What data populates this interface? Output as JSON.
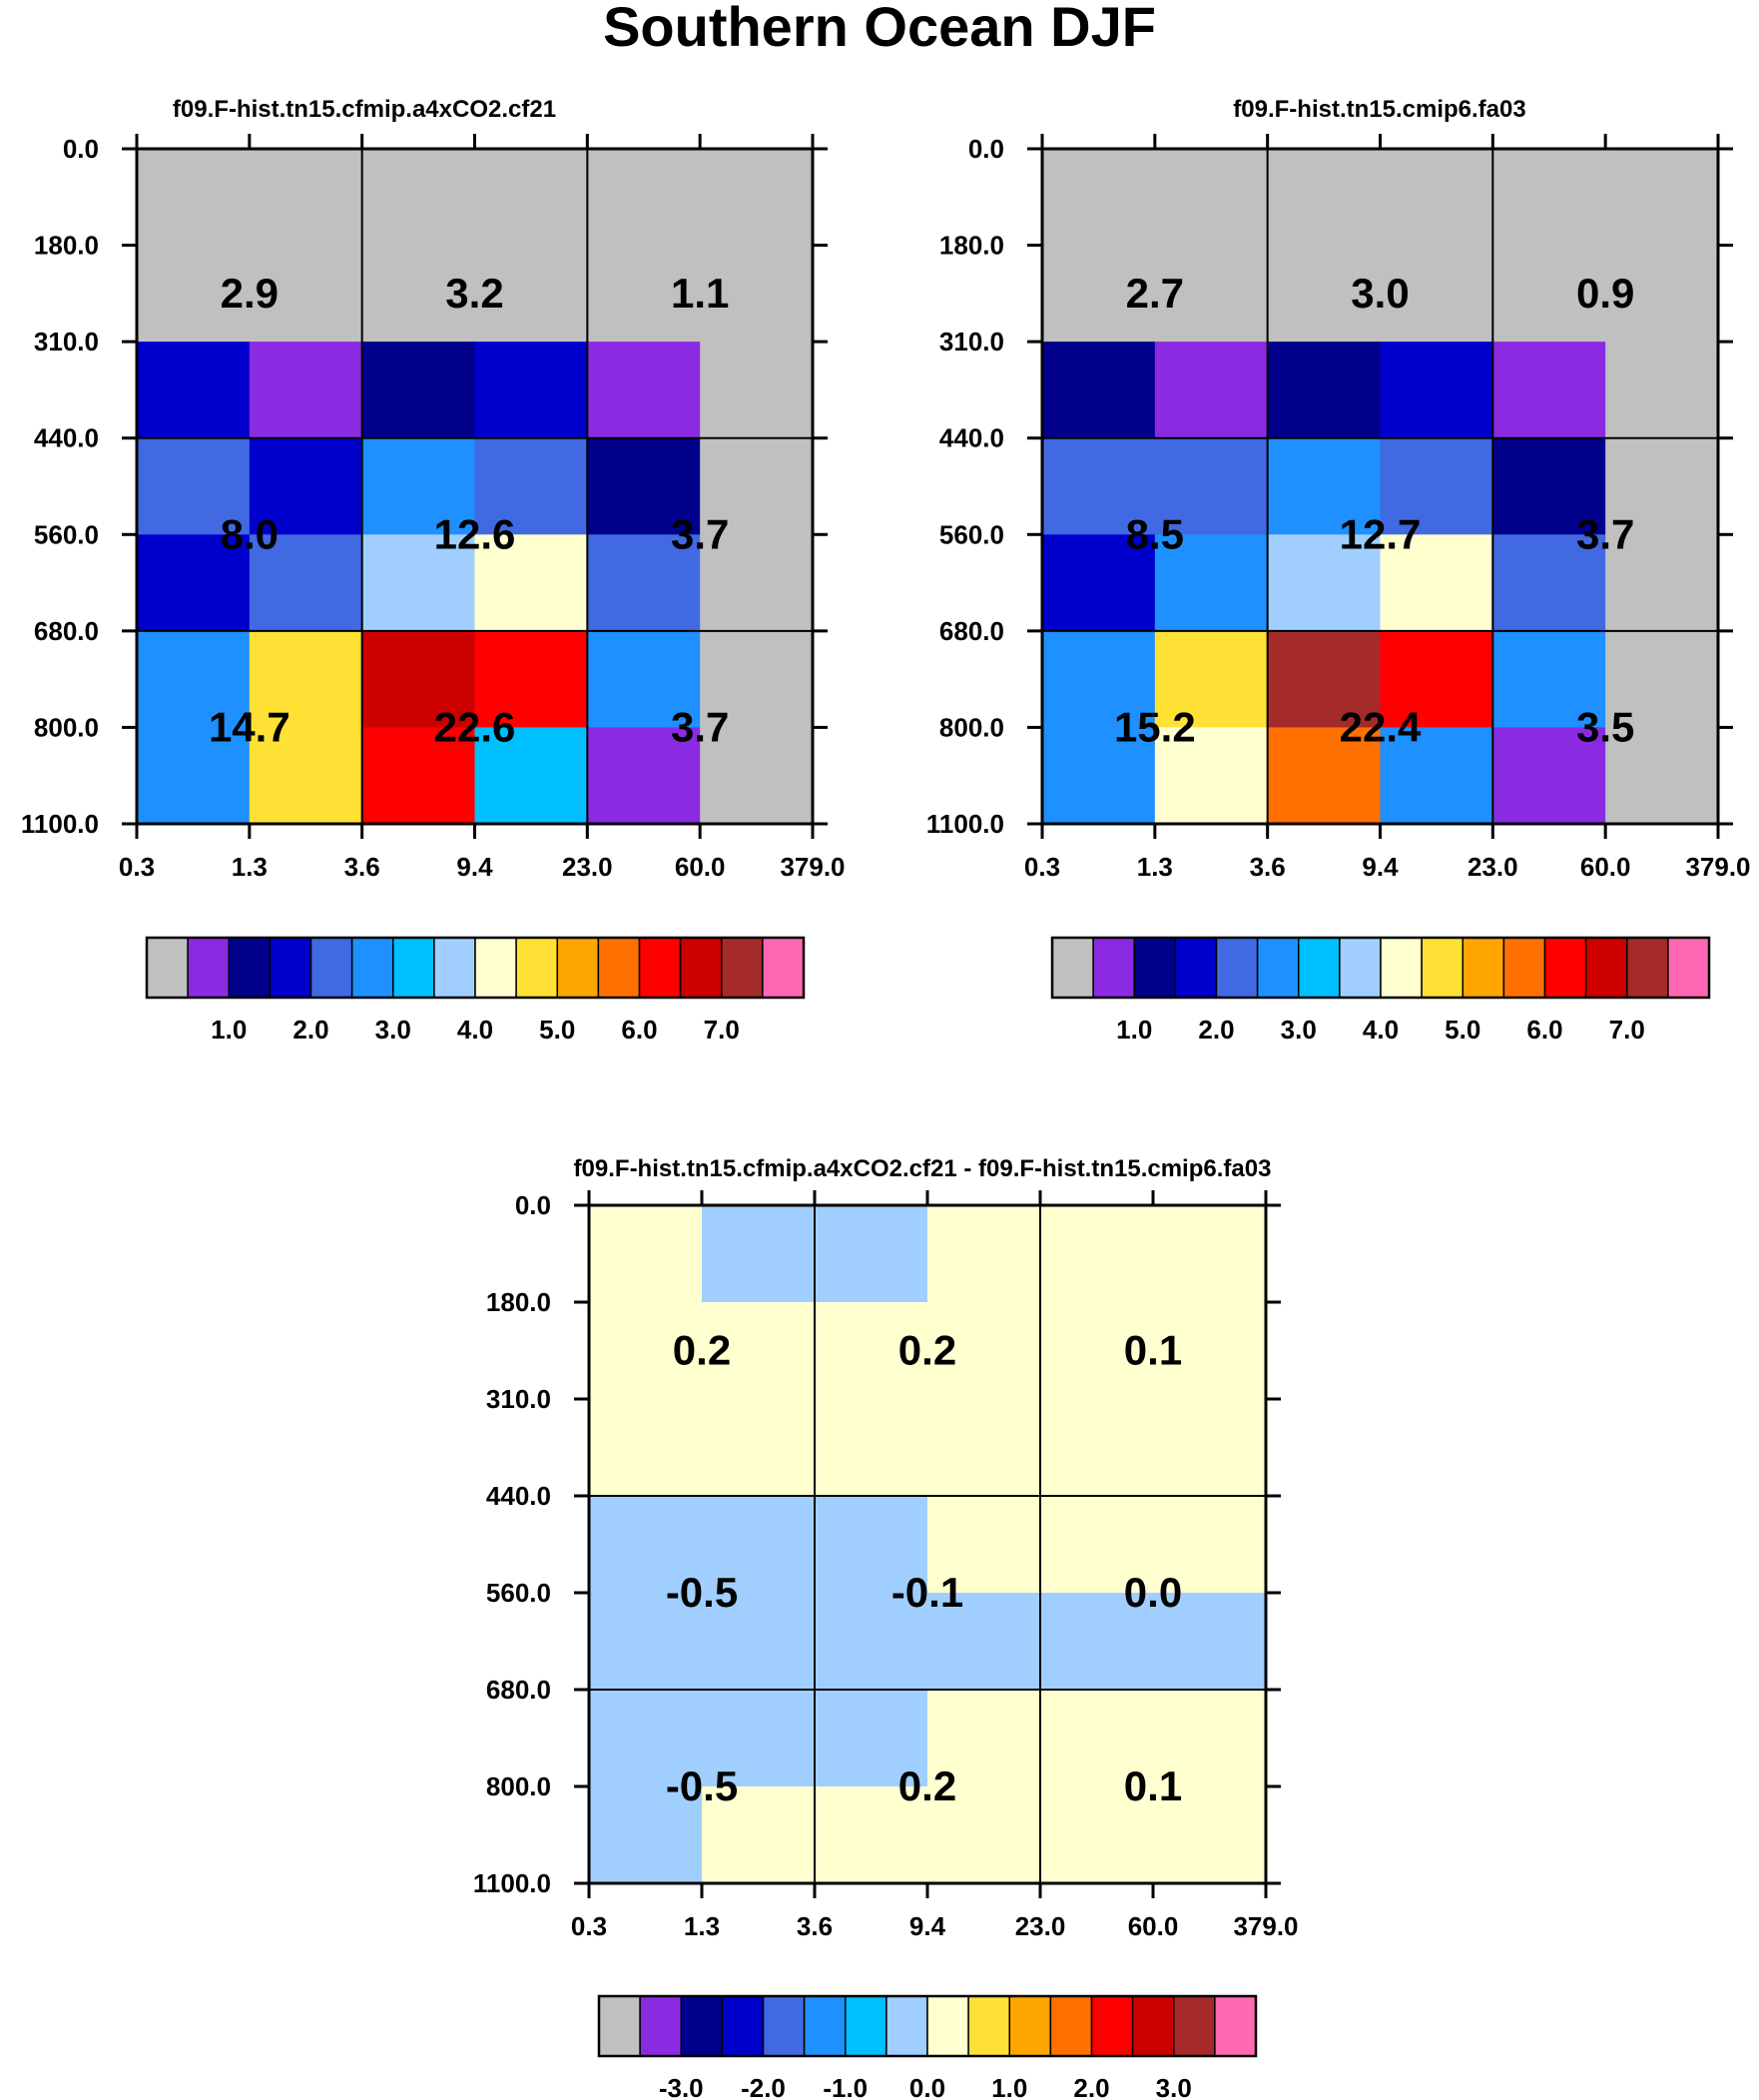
{
  "title": "Southern Ocean DJF",
  "colors": {
    "scale": [
      "#c0c0c0",
      "#8a2be2",
      "#00008b",
      "#0000cd",
      "#4169e1",
      "#1e90ff",
      "#00bfff",
      "#a0cfff",
      "#ffffd0",
      "#ffe135",
      "#ffa500",
      "#ff7000",
      "#ff0000",
      "#cd0000",
      "#a52a2a",
      "#ff69b4"
    ]
  },
  "chart_data": [
    {
      "type": "heatmap",
      "title": "f09.F-hist.tn15.cfmip.a4xCO2.cf21",
      "x_ticks": [
        "0.3",
        "1.3",
        "3.6",
        "9.4",
        "23.0",
        "60.0",
        "379.0"
      ],
      "y_ticks": [
        "0.0",
        "180.0",
        "310.0",
        "440.0",
        "560.0",
        "680.0",
        "800.0",
        "1100.0"
      ],
      "cells": [
        [
          0,
          0,
          0,
          0,
          0,
          0
        ],
        [
          0,
          0,
          0,
          0,
          0,
          0
        ],
        [
          3,
          1,
          2,
          3,
          1,
          0
        ],
        [
          4,
          3,
          5,
          4,
          2,
          0
        ],
        [
          3,
          4,
          7,
          8,
          4,
          0
        ],
        [
          5,
          9,
          13,
          12,
          5,
          0
        ],
        [
          5,
          9,
          12,
          6,
          1,
          0
        ]
      ],
      "group_values": [
        [
          "2.9",
          "3.2",
          "1.1"
        ],
        [
          "8.0",
          "12.6",
          "3.7"
        ],
        [
          "14.7",
          "22.6",
          "3.7"
        ]
      ],
      "colorbar_labels": [
        "1.0",
        "2.0",
        "3.0",
        "4.0",
        "5.0",
        "6.0",
        "7.0"
      ]
    },
    {
      "type": "heatmap",
      "title": "f09.F-hist.tn15.cmip6.fa03",
      "x_ticks": [
        "0.3",
        "1.3",
        "3.6",
        "9.4",
        "23.0",
        "60.0",
        "379.0"
      ],
      "y_ticks": [
        "0.0",
        "180.0",
        "310.0",
        "440.0",
        "560.0",
        "680.0",
        "800.0",
        "1100.0"
      ],
      "cells": [
        [
          0,
          0,
          0,
          0,
          0,
          0
        ],
        [
          0,
          0,
          0,
          0,
          0,
          0
        ],
        [
          2,
          1,
          2,
          3,
          1,
          0
        ],
        [
          4,
          4,
          5,
          4,
          2,
          0
        ],
        [
          3,
          5,
          7,
          8,
          4,
          0
        ],
        [
          5,
          9,
          14,
          12,
          5,
          0
        ],
        [
          5,
          8,
          11,
          5,
          1,
          0
        ]
      ],
      "group_values": [
        [
          "2.7",
          "3.0",
          "0.9"
        ],
        [
          "8.5",
          "12.7",
          "3.7"
        ],
        [
          "15.2",
          "22.4",
          "3.5"
        ]
      ],
      "colorbar_labels": [
        "1.0",
        "2.0",
        "3.0",
        "4.0",
        "5.0",
        "6.0",
        "7.0"
      ]
    },
    {
      "type": "heatmap",
      "title": "f09.F-hist.tn15.cfmip.a4xCO2.cf21 - f09.F-hist.tn15.cmip6.fa03",
      "x_ticks": [
        "0.3",
        "1.3",
        "3.6",
        "9.4",
        "23.0",
        "60.0",
        "379.0"
      ],
      "y_ticks": [
        "0.0",
        "180.0",
        "310.0",
        "440.0",
        "560.0",
        "680.0",
        "800.0",
        "1100.0"
      ],
      "cells": [
        [
          8,
          7,
          7,
          8,
          8,
          8
        ],
        [
          8,
          8,
          8,
          8,
          8,
          8
        ],
        [
          8,
          8,
          8,
          8,
          8,
          8
        ],
        [
          7,
          7,
          7,
          8,
          8,
          8
        ],
        [
          7,
          7,
          7,
          7,
          7,
          7
        ],
        [
          7,
          7,
          7,
          8,
          8,
          8
        ],
        [
          7,
          8,
          8,
          8,
          8,
          8
        ]
      ],
      "group_values": [
        [
          "0.2",
          "0.2",
          "0.1"
        ],
        [
          "-0.5",
          "-0.1",
          "0.0"
        ],
        [
          "-0.5",
          "0.2",
          "0.1"
        ]
      ],
      "colorbar_labels": [
        "-3.0",
        "-2.0",
        "-1.0",
        "0.0",
        "1.0",
        "2.0",
        "3.0"
      ]
    }
  ]
}
